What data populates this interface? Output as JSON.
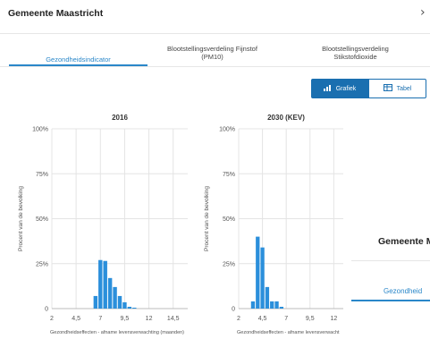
{
  "header": {
    "title": "Gemeente Maastricht",
    "chevron_icon": "chevron-right-icon"
  },
  "tabs": [
    {
      "label": "Gezondheidsindicator",
      "active": true
    },
    {
      "label_line1": "Blootstellingsverdeling Fijnstof",
      "label_line2": "(PM10)",
      "active": false
    },
    {
      "label_line1": "Blootstellingsverdeling",
      "label_line2": "Stikstofdioxide",
      "active": false
    }
  ],
  "view_toggle": {
    "grafiek_label": "Grafiek",
    "grafiek_icon": "bar-chart-icon",
    "tabel_label": "Tabel",
    "tabel_icon": "table-icon",
    "selected": "Grafiek"
  },
  "colors": {
    "accent": "#2a87c9",
    "button": "#1a6fb0",
    "bar": "#2b8fdb"
  },
  "chart_data": [
    {
      "type": "bar",
      "title": "2016",
      "ylabel": "Procent van de bevolking",
      "xlabel": "Gezondheidseffecten - afname levensverwachting (maanden)",
      "ylim": [
        0,
        100
      ],
      "xlim": [
        2,
        16
      ],
      "yticks": [
        "0",
        "25%",
        "50%",
        "75%",
        "100%"
      ],
      "xticks": [
        "2",
        "4,5",
        "7",
        "9,5",
        "12",
        "14,5"
      ],
      "xtick_values": [
        2,
        4.5,
        7,
        9.5,
        12,
        14.5
      ],
      "bin_width": 0.5,
      "bins": [
        {
          "x": 6.5,
          "y": 7
        },
        {
          "x": 7.0,
          "y": 27
        },
        {
          "x": 7.5,
          "y": 26.5
        },
        {
          "x": 8.0,
          "y": 17
        },
        {
          "x": 8.5,
          "y": 12
        },
        {
          "x": 9.0,
          "y": 7
        },
        {
          "x": 9.5,
          "y": 3.5
        },
        {
          "x": 10.0,
          "y": 1
        },
        {
          "x": 10.5,
          "y": 0.5
        }
      ]
    },
    {
      "type": "bar",
      "title": "2030 (KEV)",
      "ylabel": "Procent van de bevolking",
      "xlabel": "Gezondheidseffecten - afname levensverwacht",
      "ylim": [
        0,
        100
      ],
      "xlim": [
        2,
        13
      ],
      "yticks": [
        "0",
        "25%",
        "50%",
        "75%",
        "100%"
      ],
      "xticks": [
        "2",
        "4,5",
        "7",
        "9,5",
        "12"
      ],
      "xtick_values": [
        2,
        4.5,
        7,
        9.5,
        12
      ],
      "bin_width": 0.5,
      "bins": [
        {
          "x": 3.5,
          "y": 4
        },
        {
          "x": 4.0,
          "y": 40
        },
        {
          "x": 4.5,
          "y": 34
        },
        {
          "x": 5.0,
          "y": 12
        },
        {
          "x": 5.5,
          "y": 4
        },
        {
          "x": 6.0,
          "y": 4
        },
        {
          "x": 6.5,
          "y": 1
        }
      ]
    }
  ],
  "overlay": {
    "title": "Gemeente Maa",
    "tab_label": "Gezondheid"
  }
}
